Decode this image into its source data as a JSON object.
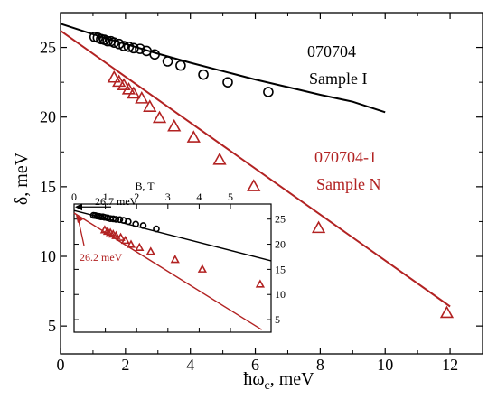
{
  "chart_data": [
    {
      "type": "scatter",
      "xlabel": "ħω",
      "xlabel_sub": "c",
      "xlabel_unit": ", meV",
      "ylabel": "δ, meV",
      "xlim": [
        0,
        13
      ],
      "ylim": [
        3,
        27.5
      ],
      "xticks": [
        0,
        2,
        4,
        6,
        8,
        10,
        12
      ],
      "yticks": [
        5,
        10,
        15,
        20,
        25
      ],
      "colors": {
        "sample_i": "#000000",
        "sample_n": "#b22222"
      },
      "series": [
        {
          "name": "Sample I",
          "label_line1": "070704",
          "label_line2": "Sample I",
          "marker": "circle",
          "color": "#000000",
          "points": [
            [
              1.05,
              25.75
            ],
            [
              1.15,
              25.7
            ],
            [
              1.25,
              25.6
            ],
            [
              1.35,
              25.55
            ],
            [
              1.45,
              25.45
            ],
            [
              1.55,
              25.45
            ],
            [
              1.65,
              25.35
            ],
            [
              1.8,
              25.25
            ],
            [
              1.95,
              25.1
            ],
            [
              2.1,
              25.05
            ],
            [
              2.25,
              24.95
            ],
            [
              2.45,
              24.9
            ],
            [
              2.65,
              24.75
            ],
            [
              2.9,
              24.5
            ],
            [
              3.3,
              24.0
            ],
            [
              3.7,
              23.7
            ],
            [
              4.4,
              23.05
            ],
            [
              5.15,
              22.5
            ],
            [
              6.4,
              21.8
            ]
          ],
          "fit_line": [
            [
              0,
              26.7
            ],
            [
              1,
              25.95
            ],
            [
              2,
              25.25
            ],
            [
              3,
              24.55
            ],
            [
              4,
              23.9
            ],
            [
              5,
              23.3
            ],
            [
              6,
              22.7
            ],
            [
              7,
              22.15
            ],
            [
              8,
              21.6
            ],
            [
              9,
              21.1
            ],
            [
              10,
              20.35
            ]
          ]
        },
        {
          "name": "Sample N",
          "label_line1": "070704-1",
          "label_line2": "Sample N",
          "marker": "triangle",
          "color": "#b22222",
          "points": [
            [
              1.65,
              22.85
            ],
            [
              1.8,
              22.55
            ],
            [
              1.95,
              22.3
            ],
            [
              2.1,
              22.0
            ],
            [
              2.25,
              21.7
            ],
            [
              2.5,
              21.35
            ],
            [
              2.75,
              20.75
            ],
            [
              3.05,
              19.95
            ],
            [
              3.5,
              19.35
            ],
            [
              4.1,
              18.55
            ],
            [
              4.9,
              16.95
            ],
            [
              5.95,
              15.05
            ],
            [
              7.95,
              12.05
            ],
            [
              11.9,
              5.95
            ]
          ],
          "fit_line": [
            [
              0,
              26.2
            ],
            [
              12,
              6.4
            ]
          ]
        }
      ]
    },
    {
      "type": "scatter",
      "role": "inset",
      "xlabel": "B, T",
      "xlim": [
        0,
        6.3
      ],
      "ylim": [
        2.5,
        28
      ],
      "xticks": [
        0,
        1,
        2,
        3,
        4,
        5
      ],
      "yticks": [
        5,
        10,
        15,
        20,
        25
      ],
      "annotations": [
        {
          "text": "26.7 meV",
          "x": 0,
          "y": 26.7,
          "color": "#000000"
        },
        {
          "text": "26.2 meV",
          "x": 0,
          "y": 26.2,
          "color": "#b22222"
        }
      ],
      "series": [
        {
          "name": "Sample I",
          "marker": "circle",
          "color": "#000000",
          "points": [
            [
              0.62,
              25.75
            ],
            [
              0.68,
              25.7
            ],
            [
              0.74,
              25.6
            ],
            [
              0.8,
              25.55
            ],
            [
              0.86,
              25.45
            ],
            [
              0.92,
              25.45
            ],
            [
              0.98,
              25.35
            ],
            [
              1.07,
              25.25
            ],
            [
              1.16,
              25.1
            ],
            [
              1.25,
              25.05
            ],
            [
              1.34,
              24.95
            ],
            [
              1.46,
              24.9
            ],
            [
              1.58,
              24.75
            ],
            [
              1.73,
              24.5
            ],
            [
              1.97,
              24.0
            ],
            [
              2.21,
              23.7
            ],
            [
              2.63,
              23.05
            ]
          ],
          "fit_line": [
            [
              0,
              26.7
            ],
            [
              6.3,
              16.7
            ]
          ]
        },
        {
          "name": "Sample N",
          "marker": "triangle",
          "color": "#b22222",
          "points": [
            [
              0.98,
              22.85
            ],
            [
              1.07,
              22.55
            ],
            [
              1.16,
              22.3
            ],
            [
              1.25,
              22.0
            ],
            [
              1.34,
              21.7
            ],
            [
              1.49,
              21.35
            ],
            [
              1.64,
              20.75
            ],
            [
              1.82,
              19.95
            ],
            [
              2.09,
              19.35
            ],
            [
              2.45,
              18.55
            ],
            [
              3.23,
              16.95
            ],
            [
              4.1,
              15.05
            ],
            [
              5.95,
              12.05
            ]
          ],
          "fit_line": [
            [
              0,
              26.2
            ],
            [
              6.0,
              3.0
            ]
          ]
        }
      ]
    }
  ]
}
